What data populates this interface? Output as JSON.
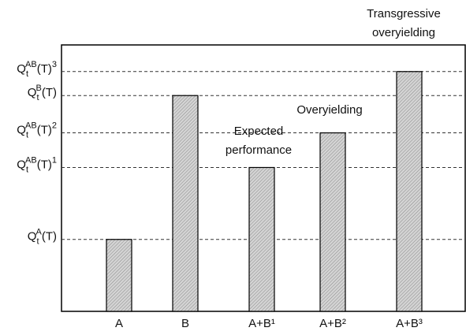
{
  "chart_data": {
    "type": "bar",
    "categories": [
      "A",
      "B",
      "A+B¹",
      "A+B²",
      "A+B³"
    ],
    "values": [
      27,
      81,
      54,
      67,
      90
    ],
    "color": "#c8c8c8",
    "ylim": [
      0,
      100
    ],
    "yticks": [
      {
        "value": 27,
        "label": [
          "Q",
          "t",
          "A",
          "(T)",
          ""
        ]
      },
      {
        "value": 54,
        "label": [
          "Q",
          "t",
          "AB",
          "(T)",
          "1"
        ]
      },
      {
        "value": 67,
        "label": [
          "Q",
          "t",
          "AB",
          "(T)",
          "2"
        ]
      },
      {
        "value": 81,
        "label": [
          "Q",
          "t",
          "B",
          "(T)",
          ""
        ]
      },
      {
        "value": 90,
        "label": [
          "Q",
          "t",
          "AB",
          "(T)",
          "3"
        ]
      }
    ],
    "grid": true,
    "annotations": [
      {
        "lines": [
          "Transgressive",
          "overyielding"
        ]
      },
      {
        "lines": [
          "Overyielding"
        ]
      },
      {
        "lines": [
          "Expected",
          "performance"
        ]
      }
    ]
  }
}
